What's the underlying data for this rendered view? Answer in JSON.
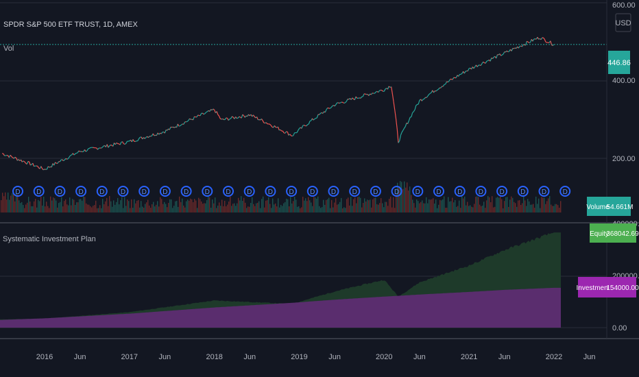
{
  "header": {
    "symbol_title": "SPDR S&P 500 ETF TRUST, 1D, AMEX",
    "vol_label": "Vol",
    "currency_button": "USD"
  },
  "price_axis": {
    "ticks": [
      "600.00",
      "400.00",
      "200.00"
    ]
  },
  "price_tag": {
    "value": "446.86",
    "color": "#26a69a"
  },
  "volume_tag": {
    "label": "Volume",
    "value": "54.661M",
    "color": "#26a69a"
  },
  "sip_panel": {
    "title": "Systematic Investment Plan",
    "axis_ticks": [
      "400000.00",
      "200000.00",
      "0.00"
    ]
  },
  "equity_tag": {
    "label": "Equity",
    "value": "368042.69",
    "color": "#4caf50"
  },
  "investment_tag": {
    "label": "Investment",
    "value": "154000.00",
    "color": "#9c27b0"
  },
  "dividend_marker_glyph": "D",
  "time_axis": {
    "labels": [
      "2016",
      "Jun",
      "2017",
      "Jun",
      "2018",
      "Jun",
      "2019",
      "Jun",
      "2020",
      "Jun",
      "2021",
      "Jun",
      "2022",
      "Jun"
    ]
  },
  "colors": {
    "background": "#131722",
    "grid": "#2a2e39",
    "price_line": "#d1d4dc",
    "up": "#26a69a",
    "down": "#ef5350",
    "equity_fill": "#1e3a2a",
    "investment_fill": "#5a2d6e",
    "dividend_marker": "#2962ff"
  },
  "chart_data": [
    {
      "type": "line",
      "x": [
        "2015-07",
        "2016-01",
        "2016-06",
        "2017-01",
        "2017-06",
        "2018-01",
        "2018-02",
        "2018-06",
        "2018-12",
        "2019-06",
        "2020-01",
        "2020-02",
        "2020-03",
        "2020-06",
        "2021-01",
        "2021-06",
        "2021-11",
        "2022-01"
      ],
      "y": [
        207,
        185,
        210,
        225,
        242,
        282,
        262,
        272,
        235,
        292,
        325,
        335,
        225,
        300,
        375,
        420,
        470,
        446.86
      ],
      "ylim": [
        150,
        600
      ]
    },
    {
      "type": "bar",
      "y": [
        54.661
      ]
    },
    {
      "type": "area",
      "x": [
        "2015-07",
        "2016-01",
        "2017-01",
        "2018-01",
        "2018-12",
        "2019-06",
        "2020-01",
        "2020-03",
        "2020-06",
        "2021-01",
        "2021-06",
        "2022-01"
      ],
      "series": [
        {
          "name": "Equity",
          "values": [
            32000,
            35000,
            60000,
            105000,
            92000,
            140000,
            185000,
            120000,
            175000,
            240000,
            300000,
            368042.69
          ]
        },
        {
          "name": "Investment",
          "values": [
            30000,
            36000,
            54000,
            78000,
            96000,
            108000,
            120000,
            123000,
            128000,
            138000,
            146000,
            154000
          ]
        }
      ],
      "ylim": [
        0,
        400000
      ]
    }
  ]
}
